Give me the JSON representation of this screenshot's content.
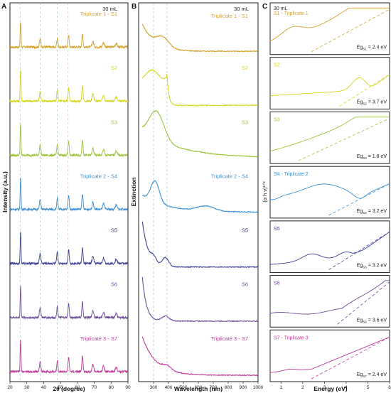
{
  "chart_data": [
    {
      "type": "line",
      "panel_label": "A",
      "xlabel": "2θ (degree)",
      "ylabel": "Intensity (a.u.)",
      "xlim": [
        20,
        90
      ],
      "xticks": [
        "20",
        "30",
        "40",
        "50",
        "60",
        "70",
        "80",
        "90"
      ],
      "annotation": "30 mL",
      "reference_lines": [
        26,
        38,
        48,
        54.5
      ],
      "peaks": [
        26.3,
        37.9,
        48.1,
        54.8,
        63.0,
        69.2,
        75.5,
        83.0
      ],
      "series": [
        {
          "name": "Triplicate 1 - S1",
          "color": "#d4a22a"
        },
        {
          "name": "S2",
          "color": "#d6d41c"
        },
        {
          "name": "S3",
          "color": "#9dc33a"
        },
        {
          "name": "Triplicate 2 - S4",
          "color": "#3b8fd6"
        },
        {
          "name": "S5",
          "color": "#3d3f96"
        },
        {
          "name": "S6",
          "color": "#6b4a9a"
        },
        {
          "name": "Triplicate 3 - S7",
          "color": "#c0399a"
        }
      ]
    },
    {
      "type": "line",
      "panel_label": "B",
      "xlabel": "Wavelength (nm)",
      "ylabel": "Extinction",
      "xlim": [
        200,
        1000
      ],
      "xticks": [
        "300",
        "400",
        "500",
        "600",
        "700",
        "800",
        "900",
        "1000"
      ],
      "annotation": "30 mL",
      "reference_lines": [
        300,
        390
      ],
      "series": [
        {
          "name": "Triplicate 1 - S1",
          "color": "#d4a22a"
        },
        {
          "name": "S2",
          "color": "#d6d41c"
        },
        {
          "name": "S3",
          "color": "#9dc33a"
        },
        {
          "name": "Triplicate 2 - S4",
          "color": "#3b8fd6"
        },
        {
          "name": "S5",
          "color": "#3d3f96"
        },
        {
          "name": "S6",
          "color": "#6b4a9a"
        },
        {
          "name": "Triplicate 3 - S7",
          "color": "#c0399a"
        }
      ]
    },
    {
      "type": "line",
      "panel_label": "C",
      "xlabel": "Energy (eV)",
      "ylabel": "(α h ν)¹ᐟ²",
      "xlim": [
        0.5,
        6
      ],
      "xticks": [
        "1",
        "2",
        "3",
        "4",
        "5",
        "6"
      ],
      "annotation": "30 mL",
      "series": [
        {
          "name": "S1 - Triplicate 1",
          "color": "#d4a22a",
          "bandgap_label": "Eg",
          "bandgap_sub": "S1",
          "bandgap_value": "= 2.4 eV"
        },
        {
          "name": "S2",
          "color": "#d6d41c",
          "bandgap_label": "Eg",
          "bandgap_sub": "S2",
          "bandgap_value": "= 3.7 eV"
        },
        {
          "name": "S3",
          "color": "#9dc33a",
          "bandgap_label": "Eg",
          "bandgap_sub": "S3",
          "bandgap_value": "= 1.8 eV"
        },
        {
          "name": "S4 - Triplicate 2",
          "color": "#3b8fd6",
          "bandgap_label": "Eg",
          "bandgap_sub": "S4",
          "bandgap_value": "= 3.2 eV"
        },
        {
          "name": "S5",
          "color": "#3d3f96",
          "bandgap_label": "Eg",
          "bandgap_sub": "S5",
          "bandgap_value": "= 3.2 eV"
        },
        {
          "name": "S6",
          "color": "#6b4a9a",
          "bandgap_label": "Eg",
          "bandgap_sub": "S6",
          "bandgap_value": "= 3.6 eV"
        },
        {
          "name": "S7 - Triplicate 3",
          "color": "#c0399a",
          "bandgap_label": "Eg",
          "bandgap_sub": "S7",
          "bandgap_value": "= 2.4 eV"
        }
      ]
    }
  ]
}
